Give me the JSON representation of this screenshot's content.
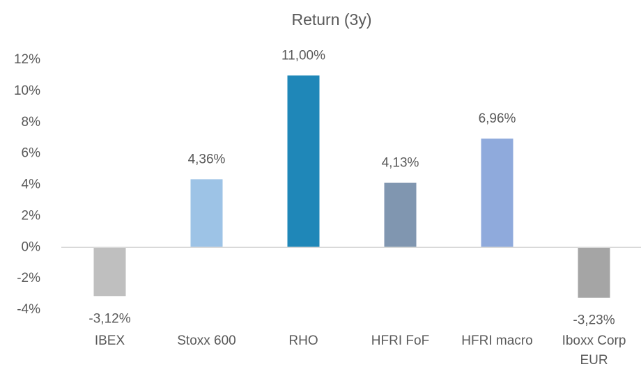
{
  "chart_data": {
    "type": "bar",
    "title": "Return (3y)",
    "categories": [
      "IBEX",
      "Stoxx 600",
      "RHO",
      "HFRI FoF",
      "HFRI macro",
      "Iboxx Corp EUR"
    ],
    "values": [
      -3.12,
      4.36,
      11,
      4.13,
      6.96,
      -3.23
    ],
    "value_labels": [
      "-3,12%",
      "4,36%",
      "11,00%",
      "4,13%",
      "6,96%",
      "-3,23%"
    ],
    "colors": [
      "#bfbfbf",
      "#9dc3e6",
      "#1f87b8",
      "#8096b0",
      "#8faadc",
      "#a5a5a5"
    ],
    "ylim": [
      -4,
      12
    ],
    "yticks": [
      {
        "value": -4,
        "label": "-4%"
      },
      {
        "value": -2,
        "label": "-2%"
      },
      {
        "value": 0,
        "label": "0%"
      },
      {
        "value": 2,
        "label": "2%"
      },
      {
        "value": 4,
        "label": "4%"
      },
      {
        "value": 6,
        "label": "6%"
      },
      {
        "value": 8,
        "label": "8%"
      },
      {
        "value": 10,
        "label": "10%"
      },
      {
        "value": 12,
        "label": "12%"
      }
    ],
    "grid": false
  }
}
